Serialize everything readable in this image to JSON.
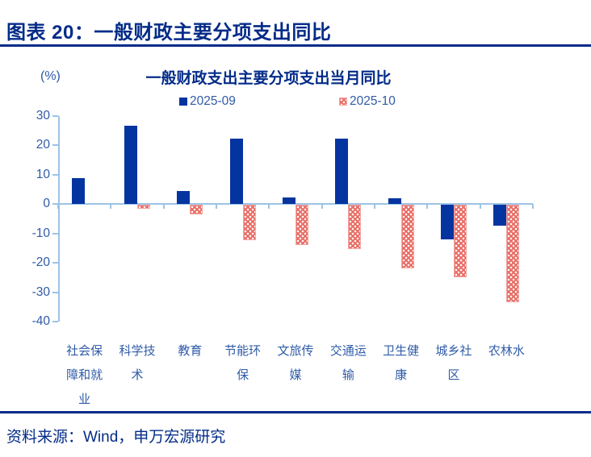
{
  "figure": {
    "title": "图表 20：一般财政主要分项支出同比",
    "source": "资料来源：Wind，申万宏源研究"
  },
  "chart_data": {
    "type": "bar",
    "title": "一般财政支出主要分项支出当月同比",
    "unit": "(%)",
    "xlabel": "",
    "ylabel": "(%)",
    "categories": [
      "社会保障和就业",
      "科学技术",
      "教育",
      "节能环保",
      "文旅传媒",
      "交通运输",
      "卫生健康",
      "城乡社区",
      "农林水"
    ],
    "categories_wrapped": [
      [
        "社会保",
        "障和就",
        "业"
      ],
      [
        "科学技",
        "术"
      ],
      [
        "教育"
      ],
      [
        "节能环",
        "保"
      ],
      [
        "文旅传",
        "媒"
      ],
      [
        "交通运",
        "输"
      ],
      [
        "卫生健",
        "康"
      ],
      [
        "城乡社",
        "区"
      ],
      [
        "农林水"
      ]
    ],
    "series": [
      {
        "name": "2025-09",
        "style": "solid",
        "color": "#0434A0",
        "values": [
          8.9,
          26.6,
          4.6,
          22.4,
          2.3,
          22.3,
          1.9,
          -11.7,
          -7.0
        ]
      },
      {
        "name": "2025-10",
        "style": "white-dot-pattern",
        "color": "#E97069",
        "values": [
          0.0,
          -1.2,
          -3.2,
          -12.0,
          -13.6,
          -15.1,
          -21.7,
          -24.5,
          -33.0
        ]
      }
    ],
    "ylim": [
      -40,
      30
    ],
    "yticks": [
      30,
      20,
      10,
      0,
      -10,
      -20,
      -30,
      -40
    ],
    "grid": false,
    "legend_position": "top",
    "colors": {
      "title_navy": "#032B88",
      "axis_line": "#9DC3E6",
      "tick_label": "#2F5BA8",
      "bar_2025_09": "#0434A0",
      "bar_2025_10": "#E97069"
    }
  }
}
